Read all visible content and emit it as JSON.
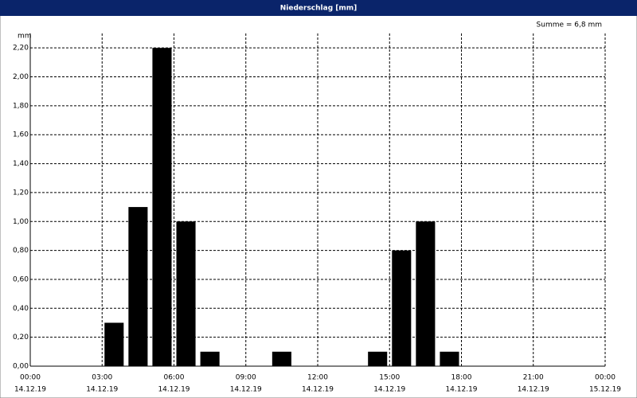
{
  "chart_data": {
    "type": "bar",
    "title": "Niederschlag [mm]",
    "y_label": "mm",
    "annotation": "Summe = 6,8 mm",
    "x": [
      3.5,
      4.5,
      5.5,
      6.5,
      7.5,
      10.5,
      14.5,
      15.5,
      16.5,
      17.5
    ],
    "values": [
      0.3,
      1.1,
      2.2,
      1.0,
      0.1,
      0.1,
      0.1,
      0.8,
      1.0,
      0.1
    ],
    "color": "#000000",
    "xlim": [
      0,
      24
    ],
    "xticks": [
      {
        "value": 0,
        "label": "00:00",
        "date": "14.12.19"
      },
      {
        "value": 3,
        "label": "03:00",
        "date": "14.12.19"
      },
      {
        "value": 6,
        "label": "06:00",
        "date": "14.12.19"
      },
      {
        "value": 9,
        "label": "09:00",
        "date": "14.12.19"
      },
      {
        "value": 12,
        "label": "12:00",
        "date": "14.12.19"
      },
      {
        "value": 15,
        "label": "15:00",
        "date": "14.12.19"
      },
      {
        "value": 18,
        "label": "18:00",
        "date": "14.12.19"
      },
      {
        "value": 21,
        "label": "21:00",
        "date": "14.12.19"
      },
      {
        "value": 24,
        "label": "00:00",
        "date": "15.12.19"
      }
    ],
    "ylim": [
      0,
      2.3
    ],
    "yticks": [
      {
        "value": 0,
        "label": "0,00"
      },
      {
        "value": 0.2,
        "label": "0,20"
      },
      {
        "value": 0.4,
        "label": "0,40"
      },
      {
        "value": 0.6,
        "label": "0,60"
      },
      {
        "value": 0.8,
        "label": "0,80"
      },
      {
        "value": 1.0,
        "label": "1,00"
      },
      {
        "value": 1.2,
        "label": "1,20"
      },
      {
        "value": 1.4,
        "label": "1,40"
      },
      {
        "value": 1.6,
        "label": "1,60"
      },
      {
        "value": 1.8,
        "label": "1,80"
      },
      {
        "value": 2.0,
        "label": "2,00"
      },
      {
        "value": 2.2,
        "label": "2,20"
      }
    ],
    "grid": true
  }
}
